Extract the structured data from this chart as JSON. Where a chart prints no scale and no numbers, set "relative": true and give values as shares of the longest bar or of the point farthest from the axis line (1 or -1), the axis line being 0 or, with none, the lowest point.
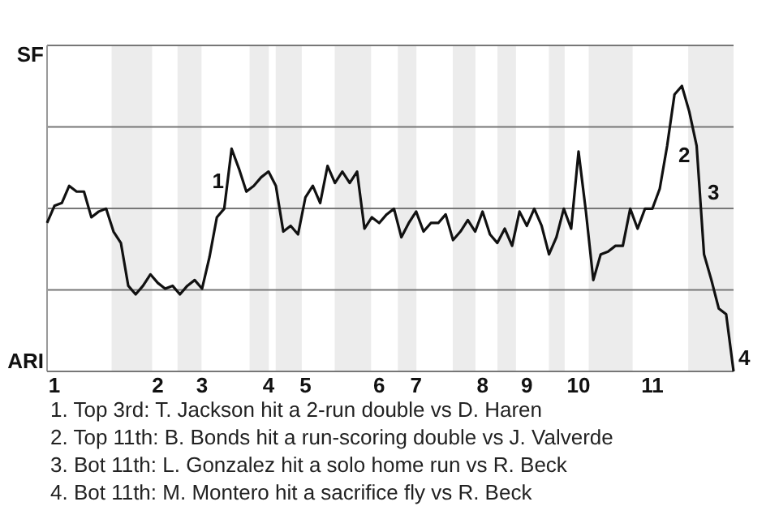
{
  "chart_data": {
    "type": "line",
    "relative": true,
    "categories": [
      null,
      "1",
      null,
      null,
      null,
      null,
      null,
      null,
      null,
      null,
      null,
      null,
      null,
      null,
      null,
      "2",
      null,
      null,
      null,
      null,
      null,
      "3",
      null,
      null,
      null,
      null,
      null,
      null,
      null,
      null,
      "4",
      null,
      null,
      null,
      null,
      "5",
      null,
      null,
      null,
      null,
      null,
      null,
      null,
      null,
      null,
      "6",
      null,
      null,
      null,
      null,
      "7",
      null,
      null,
      null,
      null,
      null,
      null,
      null,
      null,
      "8",
      null,
      null,
      null,
      null,
      null,
      "9",
      null,
      null,
      null,
      null,
      null,
      null,
      "10",
      null,
      null,
      null,
      null,
      null,
      null,
      null,
      null,
      null,
      "11",
      null,
      null,
      null,
      null,
      null,
      null,
      null,
      null,
      null,
      null,
      null
    ],
    "grid": "y",
    "marker": "none",
    "line_style": "solid",
    "series": [
      {
        "color": "#111111",
        "values": [
          0.52,
          0.58,
          0.59,
          0.65,
          0.63,
          0.63,
          0.54,
          0.56,
          0.57,
          0.49,
          0.45,
          0.3,
          0.27,
          0.3,
          0.34,
          0.31,
          0.29,
          0.3,
          0.27,
          0.3,
          0.32,
          0.29,
          0.4,
          0.54,
          0.57,
          0.78,
          0.71,
          0.63,
          0.65,
          0.68,
          0.7,
          0.65,
          0.49,
          0.51,
          0.48,
          0.61,
          0.65,
          0.59,
          0.72,
          0.66,
          0.7,
          0.66,
          0.7,
          0.5,
          0.54,
          0.52,
          0.55,
          0.57,
          0.47,
          0.52,
          0.56,
          0.49,
          0.52,
          0.52,
          0.55,
          0.46,
          0.49,
          0.53,
          0.49,
          0.56,
          0.48,
          0.45,
          0.5,
          0.44,
          0.56,
          0.51,
          0.57,
          0.51,
          0.41,
          0.47,
          0.57,
          0.5,
          0.77,
          0.56,
          0.32,
          0.41,
          0.42,
          0.44,
          0.44,
          0.57,
          0.5,
          0.57,
          0.57,
          0.64,
          0.79,
          0.97,
          1,
          0.91,
          0.79,
          0.41,
          0.32,
          0.22,
          0.2,
          0
        ]
      }
    ],
    "annotations": [
      "SF",
      "ARI",
      "1",
      "2",
      "3",
      "4",
      "1. Top 3rd: T. Jackson hit a 2-run double vs D. Haren",
      "2. Top 11th: B. Bonds hit a run-scoring double vs J. Valverde",
      "3. Bot 11th: L. Gonzalez hit a solo home run vs R. Beck",
      "4. Bot 11th: M. Montero hit a sacrifice fly vs R. Beck"
    ]
  }
}
